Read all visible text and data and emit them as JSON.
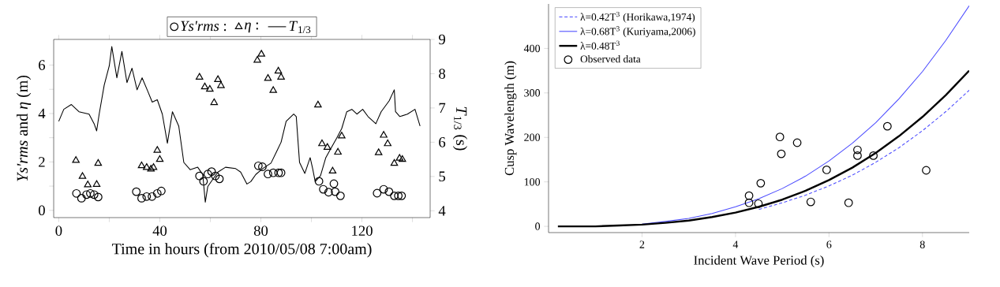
{
  "chart_data": [
    {
      "type": "line",
      "xlabel": "Time in hours (from 2010/05/08  7:00am)",
      "ylabel": "*Ys'rms* and *η* (m)",
      "y2label": "*T*$_{1/3}$ (s)",
      "xlim": [
        -2,
        147
      ],
      "xticks": [
        0,
        {
          "value": 20,
          "label": null
        },
        40,
        {
          "value": 60,
          "label": null
        },
        80,
        {
          "value": 100,
          "label": null
        },
        120,
        {
          "value": 140,
          "label": null
        }
      ],
      "ylim": [
        -0.3,
        7.06
      ],
      "yticks": [
        0,
        {
          "value": 1,
          "label": null
        },
        2,
        {
          "value": 3,
          "label": null
        },
        4,
        {
          "value": 5,
          "label": null
        },
        6
      ],
      "y2lim": [
        3.8,
        9
      ],
      "y2ticks": [
        4,
        5,
        6,
        7,
        8,
        9
      ],
      "legend": "top",
      "series": [
        {
          "name": "*Ys'rms* :",
          "type": "scatter",
          "marker": "circle",
          "color": "#000000",
          "x": [
            7,
            9,
            11,
            12.5,
            14,
            15.6,
            30.7,
            32.8,
            34.8,
            36.9,
            39,
            40.6,
            55.7,
            57.3,
            59,
            60.5,
            62,
            63.6,
            79,
            80.6,
            82.8,
            84.9,
            87,
            88,
            103,
            104.7,
            106.8,
            108.9,
            109.4,
            111.5,
            126,
            128.6,
            130.7,
            132.8,
            134.4,
            135.7
          ],
          "values": [
            0.7,
            0.5,
            0.65,
            0.7,
            0.65,
            0.55,
            0.77,
            0.5,
            0.57,
            0.57,
            0.7,
            0.8,
            1.42,
            1.2,
            1.5,
            1.6,
            1.42,
            1.3,
            1.84,
            1.8,
            1.5,
            1.55,
            1.55,
            1.55,
            1.2,
            0.87,
            0.75,
            1.1,
            0.77,
            0.6,
            0.71,
            0.87,
            0.77,
            0.6,
            0.6,
            0.6
          ]
        },
        {
          "name": "*η* :",
          "type": "scatter",
          "marker": "triangle",
          "color": "#000000",
          "x": [
            6.8,
            9.4,
            11.5,
            15,
            15.6,
            32.8,
            34.8,
            36.5,
            37.5,
            39,
            40,
            55.7,
            57.8,
            59.8,
            61.5,
            63,
            64.2,
            78.6,
            80.2,
            82.8,
            84.9,
            86.9,
            88,
            102.6,
            104.2,
            106.3,
            108.4,
            110.5,
            112,
            126.6,
            128.6,
            130.2,
            132.8,
            134.9,
            136
          ],
          "values": [
            2.06,
            1.4,
            1.05,
            1.07,
            1.94,
            1.84,
            1.77,
            1.7,
            1.77,
            2.48,
            2.1,
            5.5,
            5.1,
            5.0,
            4.45,
            5.4,
            5.15,
            6.2,
            6.45,
            5.45,
            4.95,
            5.75,
            5.5,
            4.35,
            2.75,
            2.6,
            1.62,
            2.4,
            3.07,
            2.38,
            3.1,
            2.75,
            1.94,
            2.15,
            2.1
          ]
        },
        {
          "name": "*T*$_{1/3}$",
          "axis": "y2",
          "marker": "none",
          "line_style": "solid",
          "color": "#000000",
          "x": [
            0,
            2,
            5,
            8,
            12,
            14,
            15,
            16,
            18,
            20,
            21,
            23,
            25,
            27,
            29,
            31,
            33,
            35,
            37,
            39,
            41,
            43,
            45,
            47.5,
            49.5,
            52,
            55,
            57,
            58,
            59,
            61,
            63,
            66,
            70,
            72,
            74.5,
            76,
            78,
            80.7,
            84,
            86,
            88,
            90,
            93,
            94,
            95.3,
            97.4,
            99.5,
            100.5,
            101.5,
            103.6,
            105.7,
            107.8,
            110,
            112,
            114,
            116,
            118,
            120.3,
            122.4,
            125.5,
            127.6,
            130.8,
            132.8,
            133.3,
            135,
            138,
            141,
            143
          ],
          "values": [
            6.61,
            6.96,
            7.1,
            6.89,
            6.82,
            6.54,
            6.33,
            6.82,
            7.67,
            8.23,
            8.79,
            7.88,
            8.65,
            7.74,
            8.16,
            7.53,
            7.88,
            7.53,
            7.17,
            7.24,
            6.82,
            5.97,
            6.89,
            6.47,
            5.41,
            5.2,
            5.27,
            5.06,
            4.25,
            4.71,
            4.92,
            5.13,
            5.27,
            5.23,
            5.13,
            4.78,
            4.85,
            5.06,
            5.23,
            5.39,
            5.69,
            6.0,
            6.61,
            6.82,
            6.75,
            5.41,
            5.09,
            5.55,
            5.23,
            4.85,
            5.02,
            5.55,
            5.83,
            6.12,
            6.4,
            6.89,
            6.96,
            6.82,
            6.96,
            6.75,
            6.54,
            6.89,
            7.21,
            7.53,
            6.89,
            6.75,
            6.82,
            6.96,
            6.47
          ]
        }
      ]
    },
    {
      "type": "line",
      "xlabel": "Incident Wave Period (s)",
      "ylabel": "Cusp Wavelength (m)",
      "xlim": [
        0,
        9
      ],
      "xticks": [
        2,
        4,
        6,
        8
      ],
      "ylim": [
        -14,
        500
      ],
      "yticks": [
        0,
        100,
        200,
        300,
        400
      ],
      "legend": "top left",
      "series": [
        {
          "name": "λ=0.42T$^{3}$ (Horikawa,1974)",
          "marker": "none",
          "line_style": "dashed",
          "color": "#4b4bff",
          "x": [
            4.5,
            5,
            5.5,
            6,
            6.5,
            7,
            7.5,
            8,
            8.5,
            9
          ],
          "values": [
            38,
            53,
            70,
            91,
            115,
            144,
            177,
            215,
            258,
            306
          ]
        },
        {
          "name": "λ=0.68T$^{3}$ (Kuriyama,2006)",
          "marker": "none",
          "line_style": "solid",
          "color": "#4b4bff",
          "x": [
            2,
            2.5,
            3,
            3.5,
            4,
            4.5,
            5,
            5.5,
            6,
            6.5,
            7,
            7.5,
            8,
            8.5,
            9
          ],
          "values": [
            5,
            11,
            18,
            29,
            44,
            62,
            85,
            113,
            147,
            187,
            233,
            287,
            348,
            418,
            496
          ]
        },
        {
          "name": "λ=0.48T$^{3}$",
          "marker": "none",
          "line_style": "solid",
          "color": "#000000",
          "x": [
            0.2,
            0.5,
            1,
            1.5,
            2,
            2.5,
            3,
            3.5,
            4,
            4.5,
            5,
            5.5,
            6,
            6.5,
            7,
            7.5,
            8,
            8.5,
            9
          ],
          "values": [
            0,
            0,
            0,
            2,
            4,
            8,
            13,
            21,
            31,
            44,
            60,
            80,
            104,
            132,
            165,
            203,
            246,
            295,
            350
          ]
        },
        {
          "name": "Observed data",
          "type": "scatter",
          "marker": "circle",
          "color": "#000000",
          "x": [
            4.29,
            4.29,
            4.49,
            4.54,
            4.95,
            4.98,
            5.32,
            5.61,
            5.95,
            6.42,
            6.61,
            6.61,
            6.95,
            7.25,
            8.08
          ],
          "values": [
            69,
            53,
            51,
            97,
            201,
            163,
            188,
            55,
            127,
            53,
            172,
            159,
            159,
            225,
            126
          ]
        }
      ]
    }
  ]
}
